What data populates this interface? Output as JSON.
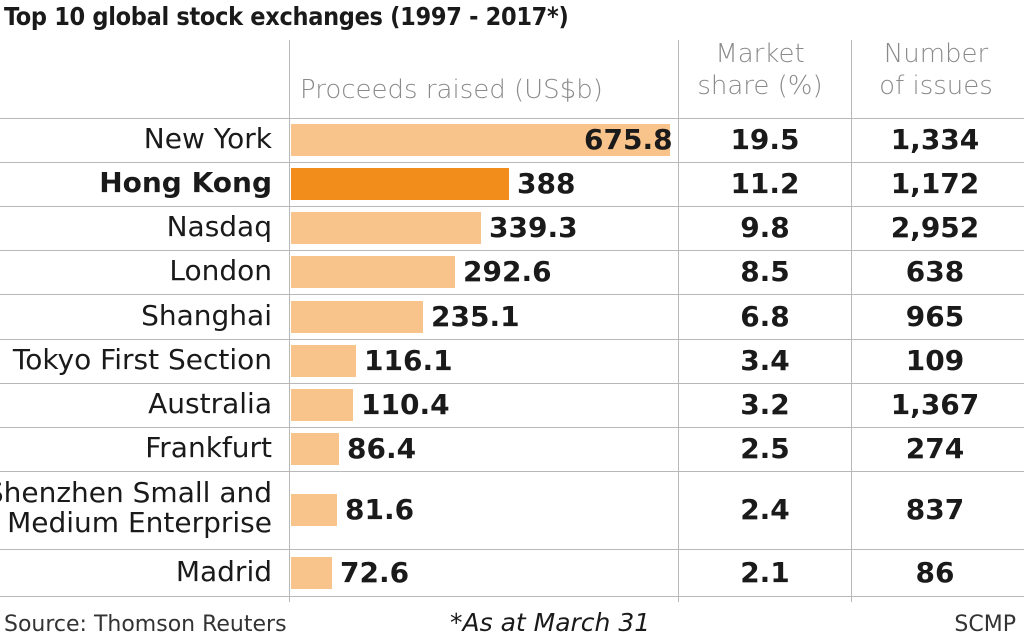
{
  "chart_data": {
    "type": "bar",
    "title": "Top 10 global stock exchanges (1997 - 2017*)",
    "columns": [
      "Proceeds raised (US$b)",
      "Market share (%)",
      "Number of issues"
    ],
    "categories": [
      "New York",
      "Hong Kong",
      "Nasdaq",
      "London",
      "Shanghai",
      "Tokyo First Section",
      "Australia",
      "Frankfurt",
      "Shenzhen Small and Medium Enterprise",
      "Madrid"
    ],
    "highlight": "Hong Kong",
    "values": [
      675.8,
      388,
      339.3,
      292.6,
      235.1,
      116.1,
      110.4,
      86.4,
      81.6,
      72.6
    ],
    "value_labels": [
      "675.8",
      "388",
      "339.3",
      "292.6",
      "235.1",
      "116.1",
      "110.4",
      "86.4",
      "81.6",
      "72.6"
    ],
    "market_share": [
      "19.5",
      "11.2",
      "9.8",
      "8.5",
      "6.8",
      "3.4",
      "3.2",
      "2.5",
      "2.4",
      "2.1"
    ],
    "issues": [
      "1,334",
      "1,172",
      "2,952",
      "638",
      "965",
      "109",
      "1,367",
      "274",
      "837",
      "86"
    ],
    "colors": {
      "bar": "#f9c48b",
      "highlight": "#f28c1b"
    }
  },
  "header": {
    "proceeds": "Proceeds raised (US$b)",
    "share_line1": "Market",
    "share_line2": "share (%)",
    "issues_line1": "Number",
    "issues_line2": "of issues"
  },
  "footer": {
    "source": "Source: Thomson Reuters",
    "note": "*As at March 31",
    "credit": "SCMP"
  }
}
